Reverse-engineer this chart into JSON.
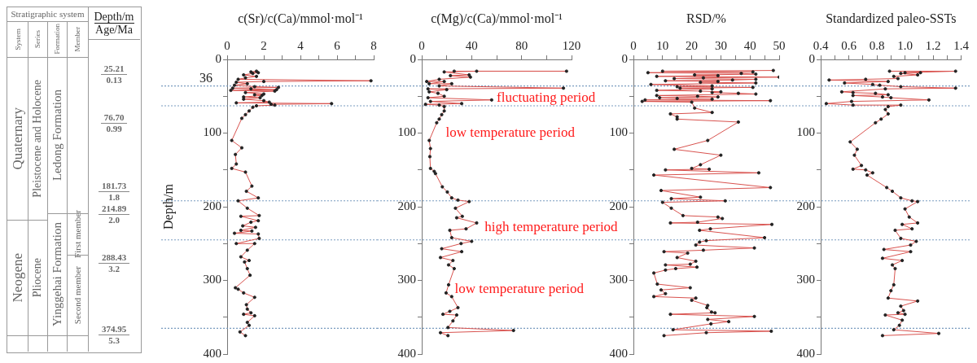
{
  "chart_data": [
    {
      "type": "other",
      "annotations": [
        "Stratigraphic system",
        "Depth/m",
        "Age/Ma",
        "System",
        "Series",
        "Formation",
        "Member",
        "Quaternary",
        "Neogene",
        "Pleistocene and Holocene",
        "Pliocene",
        "Ledong Formation",
        "Yinggehai Formation",
        "First member",
        "Second member",
        "25.21",
        "0.13",
        "76.70",
        "0.99",
        "181.73",
        "1.8",
        "214.89",
        "2.0",
        "288.43",
        "3.2",
        "374.95",
        "5.3"
      ]
    },
    {
      "type": "line",
      "xlabel": "c(Sr)/c(Ca)/mmol·mol⁻¹",
      "ylabel": "Depth/m",
      "xlim": [
        0,
        8
      ],
      "xticks": [
        0,
        {
          "value": 1,
          "label": null
        },
        2,
        {
          "value": 3,
          "label": null
        },
        4,
        {
          "value": 5,
          "label": null
        },
        6,
        {
          "value": 7,
          "label": null
        },
        8
      ],
      "ylim": [
        400,
        0
      ],
      "yticks": [
        0,
        {
          "value": 50,
          "label": null
        },
        100,
        {
          "value": 150,
          "label": null
        },
        200,
        {
          "value": 250,
          "label": null
        },
        300,
        {
          "value": 350,
          "label": null
        },
        400
      ],
      "grid": false,
      "marker": "circle",
      "line_style": "solid",
      "ref_lines": [
        {
          "axis": "y",
          "value": 36,
          "label": "36",
          "color": "#7a9cc0",
          "line_style": "dotted"
        },
        {
          "axis": "y",
          "value": 63,
          "color": "#7a9cc0",
          "line_style": "dotted"
        },
        {
          "axis": "y",
          "value": 192,
          "color": "#7a9cc0",
          "line_style": "dotted"
        },
        {
          "axis": "y",
          "value": 245,
          "color": "#7a9cc0",
          "line_style": "dotted"
        },
        {
          "axis": "y",
          "value": 365,
          "color": "#7a9cc0",
          "line_style": "dotted"
        }
      ],
      "series": [
        {
          "color": "#d9534f",
          "x": [
            1.6,
            1.3,
            1.7,
            1.4,
            0.9,
            1.6,
            1.0,
            0.6,
            7.85,
            2.0,
            0.5,
            1.1,
            0.4,
            1.5,
            2.8,
            0.3,
            1.3,
            2.7,
            0.2,
            2.6,
            1.0,
            2.0,
            1.5,
            1.9,
            0.9,
            1.8,
            0.9,
            2.0,
            2.3,
            0.5,
            5.7,
            2.4,
            2.6,
            1.6,
            1.4,
            1.2,
            1.0,
            0.8,
            0.25,
            0.8,
            0.45,
            0.5,
            0.25,
            1.0,
            1.35,
            1.05,
            1.7,
            0.6,
            1.1,
            1.75,
            0.75,
            1.7,
            1.3,
            0.85,
            1.55,
            0.75,
            1.35,
            0.4,
            1.7,
            1.75,
            0.5,
            1.5,
            1.1,
            0.75,
            1.2,
            0.95,
            1.1,
            1.25,
            0.45,
            0.6,
            0.9,
            1.5,
            1.05,
            1.1,
            1.3,
            0.9,
            1.5,
            1.1,
            1.2,
            0.7,
            1.0
          ],
          "values": [
            16,
            17,
            18,
            19,
            21,
            23,
            25,
            27,
            29,
            30,
            31,
            33,
            35,
            37,
            38,
            39,
            40,
            41,
            42,
            43,
            45,
            47,
            48,
            49,
            51,
            52,
            54,
            56,
            58,
            59,
            60,
            61,
            62,
            63,
            65,
            70,
            75,
            80,
            110,
            120,
            129,
            142,
            148,
            153,
            172,
            179,
            188,
            192,
            202,
            212,
            213,
            219,
            221,
            226,
            228,
            232,
            233,
            236,
            237,
            243,
            250,
            250,
            259,
            268,
            273,
            275,
            284,
            293,
            310,
            312,
            317,
            323,
            333,
            339,
            344,
            346,
            348,
            357,
            361,
            370,
            375
          ]
        }
      ]
    },
    {
      "type": "line",
      "xlabel": "c(Mg)/c(Ca)/mmol·mol⁻¹",
      "xlim": [
        0,
        120
      ],
      "xticks": [
        0,
        {
          "value": 20,
          "label": null
        },
        40,
        {
          "value": 60,
          "label": null
        },
        80,
        {
          "value": 100,
          "label": null
        },
        120
      ],
      "ylim": [
        400,
        0
      ],
      "yticks": [
        0,
        {
          "value": 50,
          "label": null
        },
        100,
        {
          "value": 150,
          "label": null
        },
        200,
        {
          "value": 250,
          "label": null
        },
        300,
        {
          "value": 350,
          "label": null
        },
        400
      ],
      "grid": false,
      "marker": "circle",
      "line_style": "solid",
      "ref_lines": [
        {
          "axis": "y",
          "value": 36,
          "color": "#7a9cc0",
          "line_style": "dotted"
        },
        {
          "axis": "y",
          "value": 63,
          "color": "#7a9cc0",
          "line_style": "dotted"
        },
        {
          "axis": "y",
          "value": 192,
          "color": "#7a9cc0",
          "line_style": "dotted"
        },
        {
          "axis": "y",
          "value": 245,
          "color": "#7a9cc0",
          "line_style": "dotted"
        },
        {
          "axis": "y",
          "value": 365,
          "color": "#7a9cc0",
          "line_style": "dotted"
        }
      ],
      "annotations": [
        "fluctuating period",
        "low temperature period",
        "high temperature period",
        "low temperature period"
      ],
      "series": [
        {
          "color": "#d9534f",
          "x": [
            26,
            116,
            44,
            18,
            38,
            23,
            39,
            14,
            4,
            18,
            6,
            24,
            14,
            113.5,
            5,
            20,
            6,
            13,
            18,
            5,
            56,
            7,
            32,
            3,
            14,
            18,
            18,
            16,
            14,
            12,
            6,
            7,
            6.5,
            7,
            10,
            11,
            16.5,
            20.5,
            24,
            29,
            38,
            27,
            32.5,
            28,
            44,
            35.5,
            22.5,
            24,
            40,
            31.5,
            16,
            32,
            15,
            25,
            21.5,
            26,
            21.5,
            19.5,
            24,
            29,
            22.5,
            17,
            28,
            25,
            21,
            73.5,
            15,
            21
          ],
          "values": [
            16,
            16,
            16,
            17,
            21,
            22,
            24,
            27,
            30,
            30,
            33,
            33,
            36,
            39,
            40,
            41,
            44,
            46,
            50,
            52,
            55,
            57,
            60,
            61,
            62,
            64,
            70,
            75,
            81,
            86,
            110,
            121,
            132,
            148,
            152,
            155,
            173,
            180,
            188,
            191,
            193,
            202,
            213,
            215,
            222,
            230,
            232,
            242,
            247,
            250,
            257,
            261,
            269,
            273,
            279,
            284,
            306,
            317,
            322,
            337,
            342,
            346,
            347,
            355,
            364,
            368,
            371,
            375
          ]
        }
      ]
    },
    {
      "type": "line",
      "xlabel": "RSD/%",
      "xlim": [
        0,
        50
      ],
      "xticks": [
        0,
        {
          "value": 5,
          "label": null
        },
        10,
        {
          "value": 15,
          "label": null
        },
        20,
        {
          "value": 25,
          "label": null
        },
        30,
        {
          "value": 35,
          "label": null
        },
        40,
        {
          "value": 45,
          "label": null
        },
        50
      ],
      "ylim": [
        400,
        0
      ],
      "yticks": [
        0,
        {
          "value": 50,
          "label": null
        },
        100,
        {
          "value": 150,
          "label": null
        },
        200,
        {
          "value": 250,
          "label": null
        },
        300,
        {
          "value": 350,
          "label": null
        },
        400
      ],
      "grid": false,
      "marker": "circle",
      "line_style": "solid",
      "ref_lines": [
        {
          "axis": "y",
          "value": 36,
          "color": "#7a9cc0",
          "line_style": "dotted"
        },
        {
          "axis": "y",
          "value": 63,
          "color": "#7a9cc0",
          "line_style": "dotted"
        },
        {
          "axis": "y",
          "value": 192,
          "color": "#7a9cc0",
          "line_style": "dotted"
        },
        {
          "axis": "y",
          "value": 245,
          "color": "#7a9cc0",
          "line_style": "dotted"
        },
        {
          "axis": "y",
          "value": 365,
          "color": "#7a9cc0",
          "line_style": "dotted"
        }
      ],
      "series": [
        {
          "color": "#d9534f",
          "x": [
            48,
            10,
            41,
            5,
            37,
            42,
            21,
            29,
            8,
            50,
            24,
            14,
            42,
            34,
            11,
            29,
            23,
            42,
            6,
            27,
            15,
            41,
            16,
            27,
            8,
            23,
            30,
            27,
            36,
            42,
            8,
            22,
            29,
            9,
            15,
            27,
            4,
            47,
            3,
            20,
            21,
            27,
            12.7,
            15,
            15,
            36,
            25.5,
            14,
            30,
            23,
            20,
            26,
            11,
            43,
            7,
            47,
            9.5,
            23,
            13,
            31.5,
            10,
            13,
            17,
            29,
            30.5,
            22,
            12.7,
            47.5,
            26.4,
            22.7,
            45,
            25,
            22.7,
            21.4,
            41.5,
            24,
            10.5,
            18.6,
            15,
            21.4,
            19.5,
            11,
            21.8,
            14.5,
            11,
            7,
            8.2,
            19.5,
            9.5,
            11,
            7,
            21.4,
            20,
            25.5,
            25.2,
            26.8,
            28,
            12.7,
            41.5,
            25.5,
            32.7,
            26.6,
            13.6,
            47.3,
            25,
            10.5
          ],
          "values": [
            15,
            16,
            17,
            18,
            19,
            20,
            21,
            22,
            23,
            24,
            25,
            26,
            27,
            28,
            29,
            30,
            31,
            32,
            34,
            36,
            37,
            38,
            39,
            40,
            42,
            43,
            44,
            45,
            46,
            47,
            49,
            50,
            51,
            52,
            53,
            54,
            55,
            56,
            57,
            58,
            66,
            72,
            74,
            78,
            81,
            85,
            110,
            122,
            130,
            143,
            148,
            149,
            150,
            154,
            157,
            174,
            178,
            187,
            189,
            192,
            194,
            202,
            212,
            214,
            216,
            221,
            222,
            224,
            230,
            232,
            242,
            246,
            248,
            252,
            256,
            259,
            261,
            263,
            269,
            274,
            278,
            279,
            282,
            284,
            286,
            290,
            305,
            310,
            313,
            318,
            322,
            324,
            327,
            334,
            337,
            343,
            344,
            346,
            349,
            353,
            356,
            359,
            367,
            369,
            371,
            375
          ]
        }
      ]
    },
    {
      "type": "line",
      "xlabel": "Standardized paleo-SSTs",
      "xlim": [
        0.4,
        1.4
      ],
      "xticks": [
        0.4,
        {
          "value": 0.5,
          "label": null
        },
        0.6,
        {
          "value": 0.7,
          "label": null
        },
        0.8,
        {
          "value": 0.9,
          "label": null
        },
        {
          "value": 1,
          "label": "1.0"
        },
        {
          "value": 1.1,
          "label": null
        },
        1.2,
        {
          "value": 1.3,
          "label": null
        },
        1.4
      ],
      "ylim": [
        400,
        0
      ],
      "yticks": [
        0,
        {
          "value": 50,
          "label": null
        },
        100,
        {
          "value": 150,
          "label": null
        },
        200,
        {
          "value": 250,
          "label": null
        },
        300,
        {
          "value": 350,
          "label": null
        },
        400
      ],
      "grid": false,
      "marker": "circle",
      "line_style": "solid",
      "ref_lines": [
        {
          "axis": "y",
          "value": 36,
          "color": "#7a9cc0",
          "line_style": "dotted"
        },
        {
          "axis": "y",
          "value": 63,
          "color": "#7a9cc0",
          "line_style": "dotted"
        },
        {
          "axis": "y",
          "value": 192,
          "color": "#7a9cc0",
          "line_style": "dotted"
        },
        {
          "axis": "y",
          "value": 245,
          "color": "#7a9cc0",
          "line_style": "dotted"
        },
        {
          "axis": "y",
          "value": 365,
          "color": "#7a9cc0",
          "line_style": "dotted"
        }
      ],
      "series": [
        {
          "color": "#d9534f",
          "x": [
            0.89,
            1.36,
            1,
            1.11,
            0.97,
            1.09,
            0.92,
            0.95,
            0.72,
            0.46,
            0.88,
            0.57,
            0.77,
            0.82,
            0.97,
            1.36,
            0.86,
            0.55,
            0.63,
            0.79,
            0.88,
            0.63,
            0.84,
            0.9,
            1.17,
            0.62,
            0.44,
            0.63,
            0.97,
            0.88,
            0.86,
            0.88,
            0.83,
            0.79,
            0.61,
            0.66,
            0.64,
            0.69,
            0.63,
            0.72,
            0.77,
            0.73,
            0.87,
            0.91,
            0.97,
            1.05,
            1.09,
            1,
            1.03,
            1.09,
            0.98,
            1.05,
            0.93,
            0.97,
            1.08,
            1.04,
            0.85,
            1.04,
            0.84,
            0.98,
            0.91,
            0.93,
            0.92,
            0.9,
            0.88,
            1.09,
            0.97,
            0.99,
            0.95,
            1,
            0.86,
            0.98,
            0.96,
            0.92,
            1.24,
            0.84
          ],
          "values": [
            16,
            16,
            18,
            18,
            19,
            21,
            23,
            26,
            27,
            28,
            30,
            32,
            34,
            35,
            37,
            39,
            40,
            44,
            45,
            46,
            48,
            49,
            51,
            52,
            55,
            57,
            60,
            62,
            62,
            64,
            68,
            74,
            81,
            86,
            112,
            122,
            130,
            144,
            149,
            150,
            154,
            157,
            174,
            179,
            188,
            192,
            193,
            203,
            214,
            222,
            224,
            230,
            232,
            243,
            247,
            252,
            258,
            261,
            270,
            273,
            279,
            284,
            306,
            314,
            324,
            328,
            335,
            341,
            344,
            346,
            347,
            354,
            361,
            367,
            372,
            375
          ]
        }
      ]
    }
  ]
}
